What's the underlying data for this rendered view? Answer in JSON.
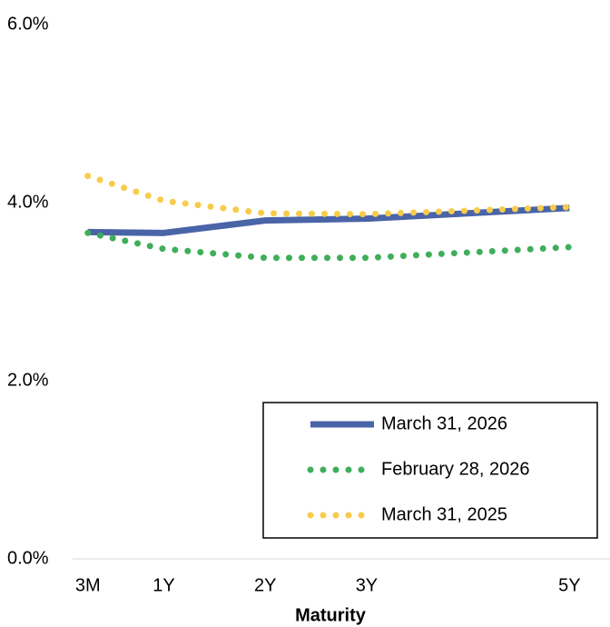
{
  "chart_data": {
    "type": "line",
    "x_label": "Maturity",
    "x": [
      0.25,
      1,
      2,
      3,
      5
    ],
    "xlim": [
      0.1,
      5.4
    ],
    "xticks": [
      {
        "value": 0.25,
        "label": "3M"
      },
      {
        "value": 1,
        "label": "1Y"
      },
      {
        "value": 2,
        "label": "2Y"
      },
      {
        "value": 3,
        "label": "3Y"
      },
      {
        "value": 5,
        "label": "5Y"
      }
    ],
    "ylim": [
      0,
      6
    ],
    "yticks": [
      {
        "value": 0,
        "label": "0.0%"
      },
      {
        "value": 2,
        "label": "2.0%"
      },
      {
        "value": 4,
        "label": "4.0%"
      },
      {
        "value": 6,
        "label": "6.0%"
      }
    ],
    "grid": false,
    "legend": "lower right",
    "series": [
      {
        "name": "March 31, 2026",
        "color": "#4a64a8",
        "style": "solid",
        "values": [
          3.67,
          3.66,
          3.8,
          3.82,
          3.94
        ]
      },
      {
        "name": "February 28, 2026",
        "color": "#3fae5a",
        "style": "dotted",
        "values": [
          3.66,
          3.48,
          3.38,
          3.38,
          3.5
        ]
      },
      {
        "name": "March 31, 2025",
        "color": "#f7cc4a",
        "style": "dotted",
        "values": [
          4.3,
          4.02,
          3.88,
          3.87,
          3.95
        ]
      }
    ]
  }
}
